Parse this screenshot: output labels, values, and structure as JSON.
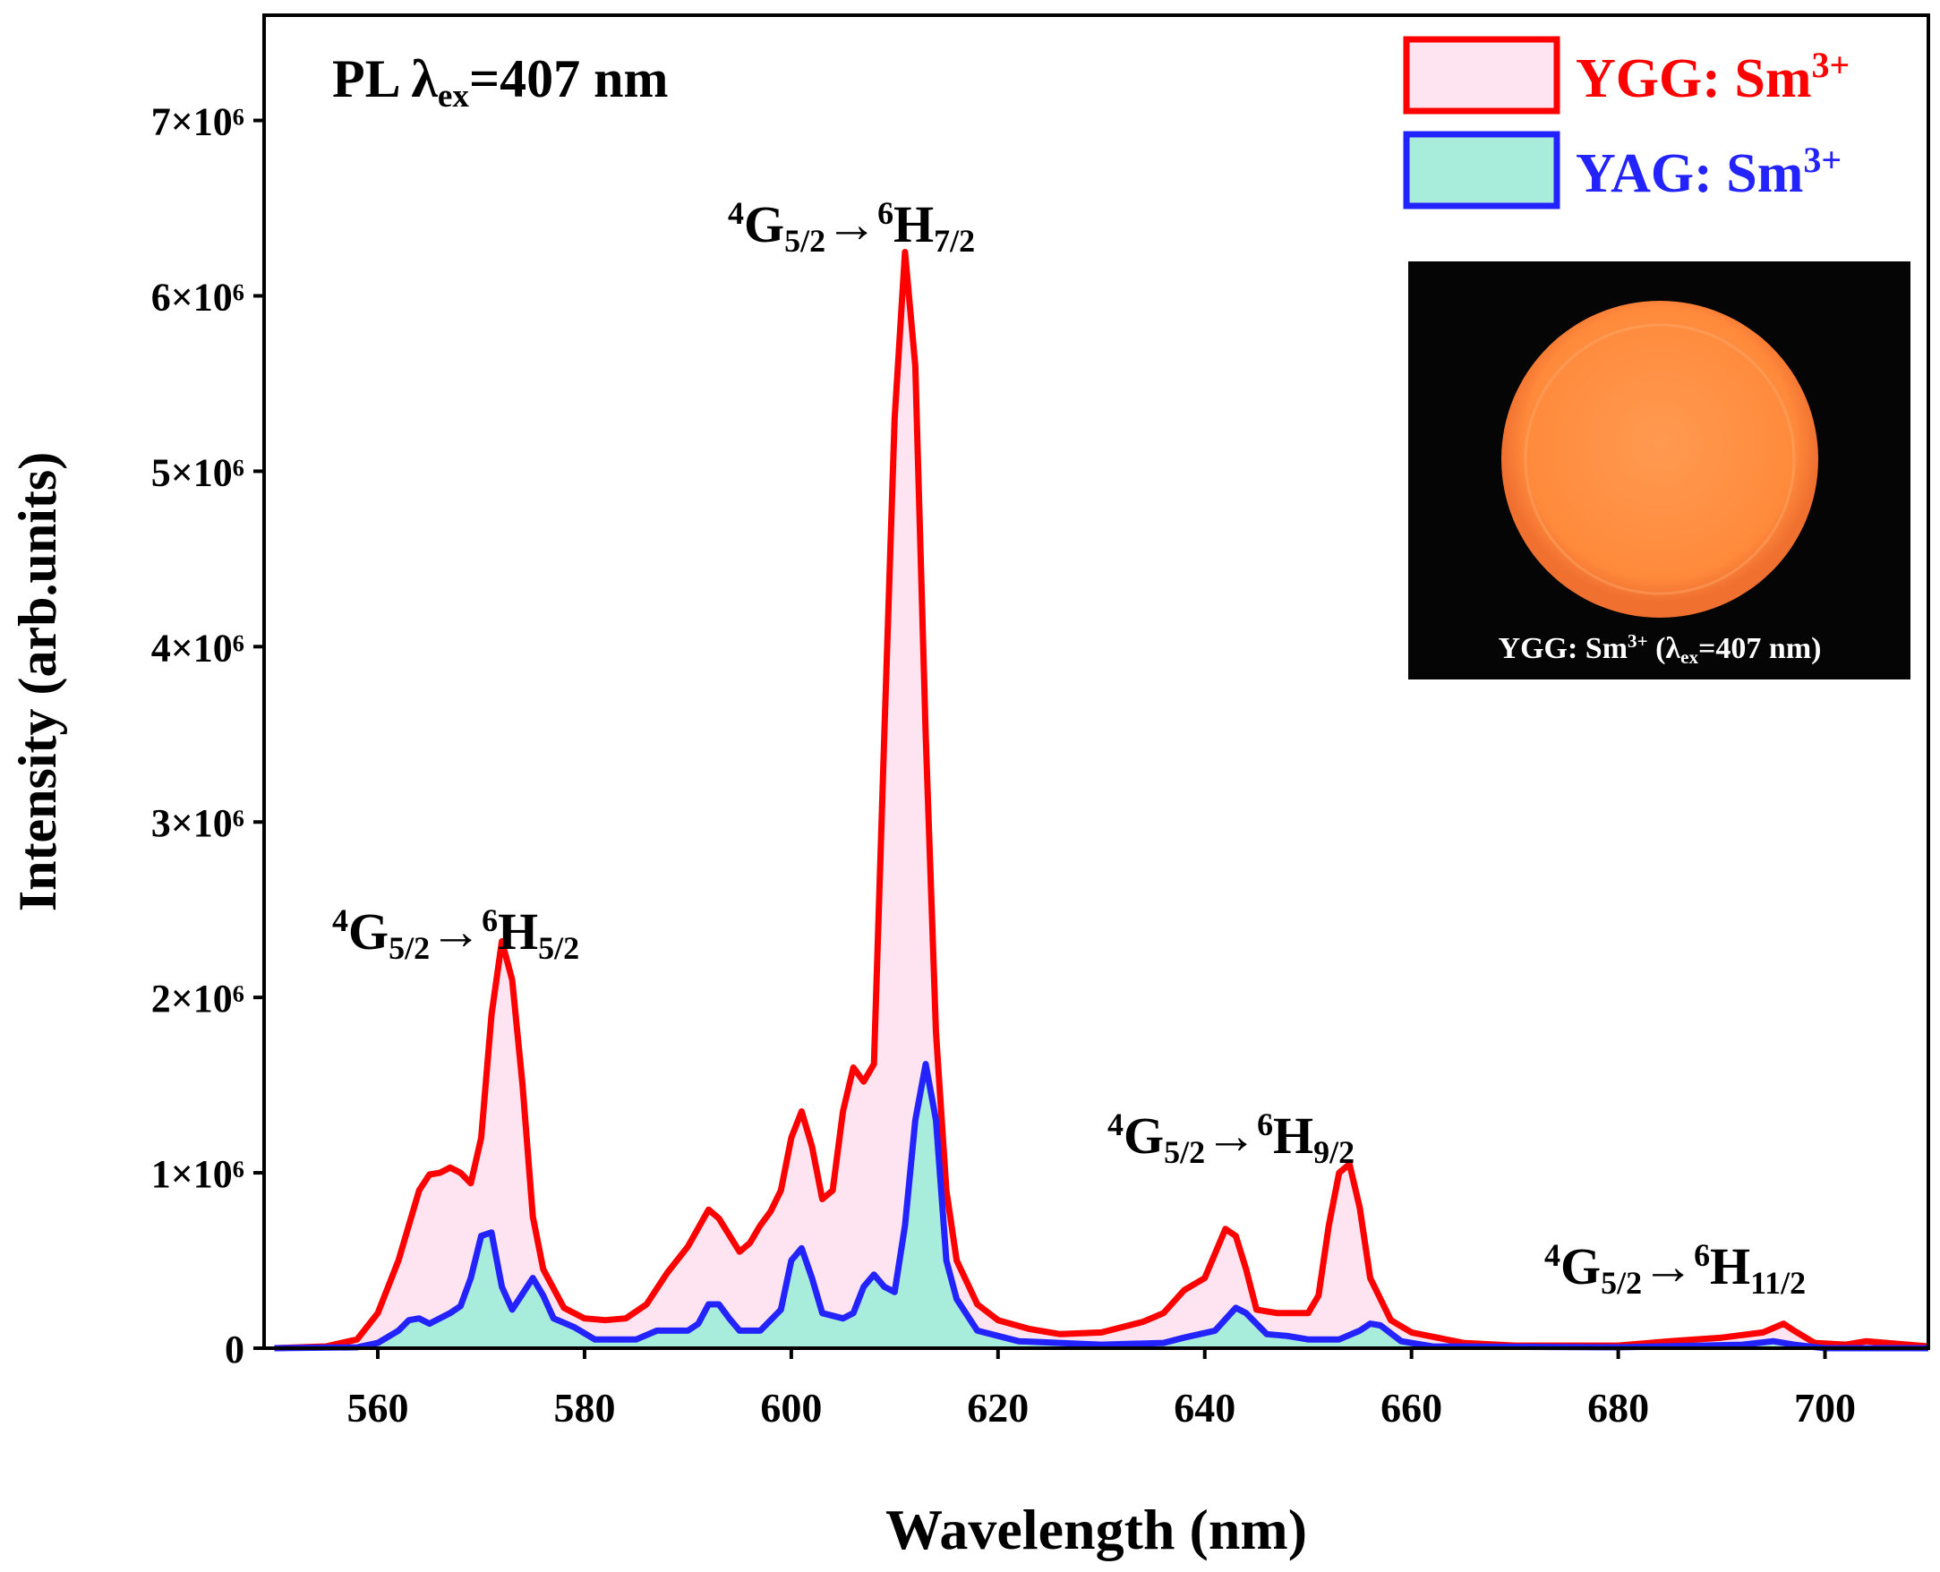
{
  "chart_data": {
    "type": "line",
    "title_parts": [
      "PL λ",
      "ex",
      "=407 nm"
    ],
    "x_label": "Wavelength (nm)",
    "y_label": "Intensity (arb.units)",
    "xlim": [
      549,
      710
    ],
    "ylim": [
      0,
      7600000
    ],
    "xticks": [
      560,
      580,
      600,
      620,
      640,
      660,
      680,
      700
    ],
    "yticks": [
      0,
      {
        "value": 1000000,
        "label": "1×10⁶"
      },
      {
        "value": 2000000,
        "label": "2×10⁶"
      },
      {
        "value": 3000000,
        "label": "3×10⁶"
      },
      {
        "value": 4000000,
        "label": "4×10⁶"
      },
      {
        "value": 5000000,
        "label": "5×10⁶"
      },
      {
        "value": 6000000,
        "label": "6×10⁶"
      },
      {
        "value": 7000000,
        "label": "7×10⁶"
      }
    ],
    "series": [
      {
        "name": "YGG: Sm",
        "name_superscript": "3+",
        "color": "#ff0000",
        "fill": "#fde4f0",
        "x": [
          550,
          555,
          558,
          560,
          562,
          564,
          565,
          566,
          567,
          568,
          569,
          570,
          571,
          572,
          573,
          574,
          575,
          576,
          578,
          580,
          582,
          584,
          586,
          588,
          590,
          592,
          593,
          595,
          596,
          597,
          598,
          599,
          600,
          601,
          602,
          603,
          604,
          605,
          606,
          607,
          608,
          609,
          610,
          611,
          612,
          613,
          614,
          615,
          616,
          618,
          620,
          623,
          626,
          630,
          634,
          636,
          638,
          640,
          642,
          643,
          644,
          645,
          647,
          650,
          651,
          652,
          653,
          654,
          655,
          656,
          658,
          660,
          665,
          670,
          680,
          685,
          690,
          694,
          696,
          697,
          699,
          702,
          704,
          708,
          710
        ],
        "values": [
          0,
          10000,
          50000,
          200000,
          500000,
          900000,
          990000,
          1000000,
          1030000,
          1000000,
          940000,
          1200000,
          1900000,
          2320000,
          2100000,
          1500000,
          750000,
          450000,
          230000,
          170000,
          160000,
          170000,
          250000,
          430000,
          580000,
          790000,
          740000,
          550000,
          600000,
          700000,
          780000,
          900000,
          1200000,
          1350000,
          1150000,
          850000,
          900000,
          1350000,
          1600000,
          1520000,
          1620000,
          3500000,
          5300000,
          6250000,
          5600000,
          3500000,
          1800000,
          900000,
          500000,
          250000,
          160000,
          110000,
          80000,
          90000,
          150000,
          200000,
          330000,
          400000,
          680000,
          640000,
          450000,
          220000,
          200000,
          200000,
          300000,
          700000,
          1000000,
          1050000,
          800000,
          400000,
          160000,
          90000,
          30000,
          15000,
          15000,
          40000,
          60000,
          90000,
          140000,
          100000,
          30000,
          20000,
          40000,
          20000,
          10000
        ]
      },
      {
        "name": "YAG: Sm",
        "name_superscript": "3+",
        "color": "#2323ff",
        "fill": "#a8ecdc",
        "x": [
          550,
          558,
          560,
          562,
          563,
          564,
          565,
          567,
          568,
          569,
          570,
          571,
          572,
          573,
          575,
          576,
          577,
          579,
          581,
          585,
          587,
          590,
          591,
          592,
          593,
          594,
          595,
          597,
          599,
          600,
          601,
          602,
          603,
          605,
          606,
          607,
          608,
          609,
          610,
          611,
          612,
          613,
          614,
          615,
          616,
          618,
          622,
          630,
          636,
          638,
          641,
          643,
          644,
          646,
          648,
          650,
          653,
          655,
          656,
          657,
          659,
          662,
          680,
          692,
          695,
          697,
          700,
          710
        ],
        "values": [
          0,
          5000,
          30000,
          100000,
          160000,
          170000,
          140000,
          200000,
          240000,
          400000,
          640000,
          660000,
          350000,
          220000,
          400000,
          300000,
          170000,
          120000,
          50000,
          50000,
          100000,
          100000,
          140000,
          250000,
          250000,
          170000,
          100000,
          100000,
          220000,
          500000,
          570000,
          400000,
          200000,
          170000,
          200000,
          350000,
          420000,
          350000,
          320000,
          700000,
          1300000,
          1620000,
          1300000,
          500000,
          280000,
          100000,
          40000,
          20000,
          30000,
          60000,
          100000,
          230000,
          200000,
          80000,
          70000,
          50000,
          50000,
          100000,
          140000,
          130000,
          40000,
          10000,
          5000,
          20000,
          40000,
          20000,
          0,
          0
        ]
      }
    ],
    "annotations": [
      {
        "parts": [
          "4",
          "G",
          "5/2",
          "→",
          "6",
          "H",
          "7/2"
        ]
      },
      {
        "parts": [
          "4",
          "G",
          "5/2",
          "→",
          "6",
          "H",
          "5/2"
        ]
      },
      {
        "parts": [
          "4",
          "G",
          "5/2",
          "→",
          "6",
          "H",
          "9/2"
        ]
      },
      {
        "parts": [
          "4",
          "G",
          "5/2",
          "→",
          "6",
          "H",
          "11/2"
        ]
      }
    ],
    "inset_caption_parts": [
      "YGG: Sm",
      "3+",
      " (λ",
      "ex",
      "=407 nm)"
    ]
  }
}
